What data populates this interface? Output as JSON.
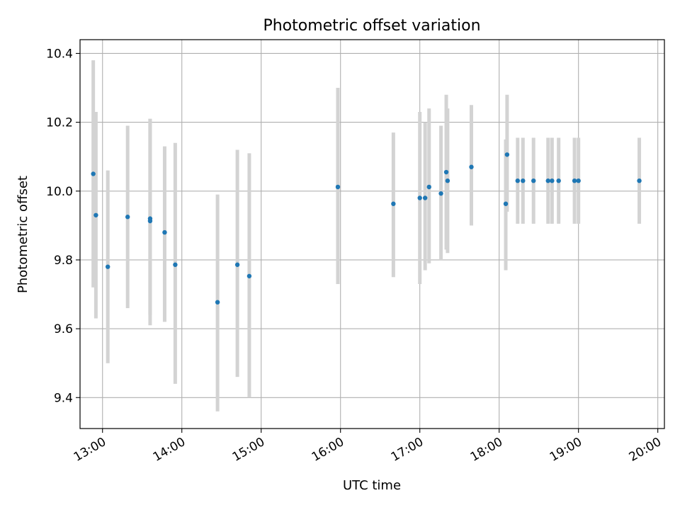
{
  "chart_data": {
    "type": "scatter",
    "title": "Photometric offset variation",
    "xlabel": "UTC time",
    "ylabel": "Photometric offset",
    "grid": true,
    "xlim": [
      "12:43",
      "20:05"
    ],
    "ylim": [
      9.31,
      10.44
    ],
    "x_ticks": [
      "13:00",
      "14:00",
      "15:00",
      "16:00",
      "17:00",
      "18:00",
      "19:00",
      "20:00"
    ],
    "y_ticks": [
      9.4,
      9.6,
      9.8,
      10.0,
      10.2,
      10.4
    ],
    "y_tick_labels": [
      "9.4",
      "9.6",
      "9.8",
      "10.0",
      "10.2",
      "10.4"
    ],
    "colors": {
      "point": "#1f77b4",
      "errorbar": "#d3d3d3",
      "grid": "#b0b0b0"
    },
    "points": [
      {
        "time": "12:53",
        "y": 10.05,
        "err_low": 9.72,
        "err_high": 10.38
      },
      {
        "time": "12:55",
        "y": 9.93,
        "err_low": 9.63,
        "err_high": 10.23
      },
      {
        "time": "13:04",
        "y": 9.78,
        "err_low": 9.5,
        "err_high": 10.06
      },
      {
        "time": "13:19",
        "y": 9.925,
        "err_low": 9.66,
        "err_high": 10.19
      },
      {
        "time": "13:36",
        "y": 9.92,
        "err_low": 9.64,
        "err_high": 10.21
      },
      {
        "time": "13:36",
        "y": 9.913,
        "err_low": 9.61,
        "err_high": 10.21
      },
      {
        "time": "13:47",
        "y": 9.88,
        "err_low": 9.62,
        "err_high": 10.13
      },
      {
        "time": "13:55",
        "y": 9.786,
        "err_low": 9.44,
        "err_high": 10.14
      },
      {
        "time": "14:27",
        "y": 9.677,
        "err_low": 9.36,
        "err_high": 9.99
      },
      {
        "time": "14:42",
        "y": 9.786,
        "err_low": 9.46,
        "err_high": 10.12
      },
      {
        "time": "14:51",
        "y": 9.753,
        "err_low": 9.4,
        "err_high": 10.11
      },
      {
        "time": "15:58",
        "y": 10.012,
        "err_low": 9.73,
        "err_high": 10.3
      },
      {
        "time": "16:40",
        "y": 9.963,
        "err_low": 9.75,
        "err_high": 10.17
      },
      {
        "time": "17:00",
        "y": 9.98,
        "err_low": 9.73,
        "err_high": 10.23
      },
      {
        "time": "17:04",
        "y": 9.98,
        "err_low": 9.77,
        "err_high": 10.2
      },
      {
        "time": "17:07",
        "y": 10.012,
        "err_low": 9.79,
        "err_high": 10.24
      },
      {
        "time": "17:16",
        "y": 9.993,
        "err_low": 9.8,
        "err_high": 10.19
      },
      {
        "time": "17:20",
        "y": 10.055,
        "err_low": 9.83,
        "err_high": 10.28
      },
      {
        "time": "17:21",
        "y": 10.03,
        "err_low": 9.82,
        "err_high": 10.24
      },
      {
        "time": "17:39",
        "y": 10.07,
        "err_low": 9.9,
        "err_high": 10.25
      },
      {
        "time": "18:05",
        "y": 9.963,
        "err_low": 9.77,
        "err_high": 10.15
      },
      {
        "time": "18:06",
        "y": 10.106,
        "err_low": 9.94,
        "err_high": 10.28
      },
      {
        "time": "18:14",
        "y": 10.03,
        "err_low": 9.905,
        "err_high": 10.155
      },
      {
        "time": "18:18",
        "y": 10.03,
        "err_low": 9.905,
        "err_high": 10.155
      },
      {
        "time": "18:26",
        "y": 10.03,
        "err_low": 9.905,
        "err_high": 10.155
      },
      {
        "time": "18:37",
        "y": 10.03,
        "err_low": 9.905,
        "err_high": 10.155
      },
      {
        "time": "18:40",
        "y": 10.03,
        "err_low": 9.905,
        "err_high": 10.155
      },
      {
        "time": "18:45",
        "y": 10.03,
        "err_low": 9.905,
        "err_high": 10.155
      },
      {
        "time": "18:57",
        "y": 10.03,
        "err_low": 9.905,
        "err_high": 10.155
      },
      {
        "time": "19:00",
        "y": 10.03,
        "err_low": 9.905,
        "err_high": 10.155
      },
      {
        "time": "19:46",
        "y": 10.03,
        "err_low": 9.905,
        "err_high": 10.155
      }
    ]
  }
}
